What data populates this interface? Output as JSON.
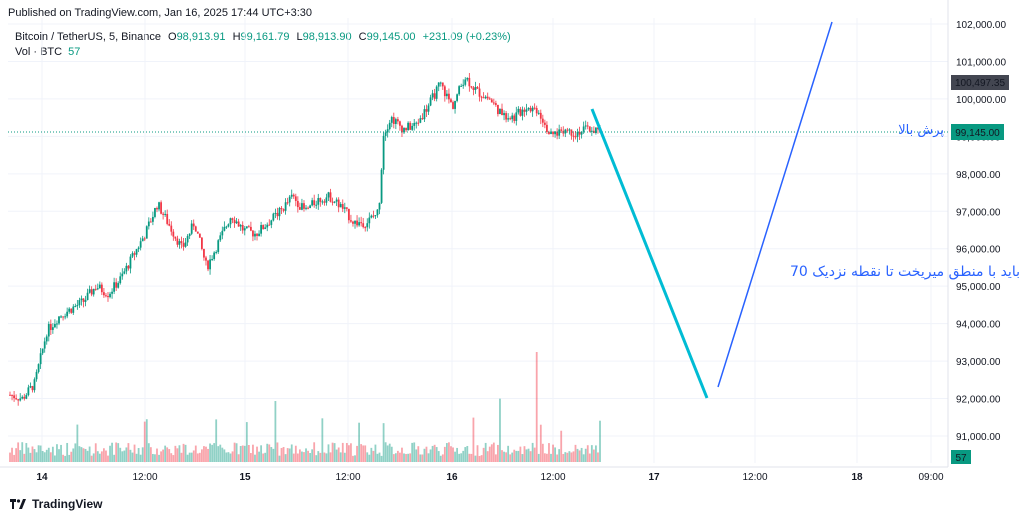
{
  "header": {
    "published": "Published on TradingView.com, Jan 16, 2025 17:44 UTC+3:30"
  },
  "legend": {
    "symbol": "Bitcoin / TetherUS, 5, Binance",
    "open_label": "O",
    "open": "98,913.91",
    "high_label": "H",
    "high": "99,161.79",
    "low_label": "L",
    "low": "98,913.90",
    "close_label": "C",
    "close": "99,145.00",
    "change": "+231.09 (+0.23%)",
    "vol_label": "Vol · BTC",
    "vol_value": "57"
  },
  "colors": {
    "up": "#089981",
    "down": "#f23645",
    "cyan_line": "#00bcd4",
    "blue_line": "#2962ff",
    "price_tag": "#089981",
    "dark_tag": "#434651"
  },
  "tags": {
    "dark_price": "100,497.35",
    "current_price": "99,145.00",
    "vol_tag": "57"
  },
  "annotations": {
    "upper_text": "پرش بالا",
    "lower_text": "باید با منطق میریخت تا نقطه نزدیک 70"
  },
  "footer": {
    "brand": "TradingView",
    "logo_icon": "tradingview-logo-icon"
  },
  "chart_data": {
    "type": "candlestick",
    "y_ticks": [
      "102,000.00",
      "101,000.00",
      "100,000.00",
      "99,000.00",
      "98,000.00",
      "97,000.00",
      "96,000.00",
      "95,000.00",
      "94,000.00",
      "93,000.00",
      "92,000.00",
      "91,000.00"
    ],
    "x_ticks": [
      "14",
      "12:00",
      "15",
      "12:00",
      "16",
      "12:00",
      "17",
      "12:00",
      "18",
      "09:00"
    ],
    "ylim": [
      90500,
      102200
    ],
    "price_path": [
      [
        0,
        92100
      ],
      [
        0.5,
        92000
      ],
      [
        1,
        92400
      ],
      [
        1.5,
        93800
      ],
      [
        2,
        94200
      ],
      [
        3,
        94600
      ],
      [
        3.5,
        95000
      ],
      [
        4,
        94800
      ],
      [
        4.5,
        95200
      ],
      [
        5,
        95800
      ],
      [
        5.5,
        96400
      ],
      [
        6,
        97200
      ],
      [
        6.5,
        96600
      ],
      [
        7,
        96000
      ],
      [
        7.5,
        96700
      ],
      [
        8,
        95500
      ],
      [
        8.5,
        96200
      ],
      [
        9,
        96900
      ],
      [
        9.5,
        96500
      ],
      [
        10,
        96400
      ],
      [
        10.5,
        96700
      ],
      [
        11,
        97000
      ],
      [
        11.5,
        97400
      ],
      [
        12,
        97000
      ],
      [
        12.5,
        97300
      ],
      [
        13,
        97400
      ],
      [
        13.5,
        97100
      ],
      [
        14,
        96700
      ],
      [
        14.5,
        96700
      ],
      [
        15,
        97000
      ],
      [
        15.2,
        99100
      ],
      [
        15.5,
        99500
      ],
      [
        16,
        99200
      ],
      [
        16.5,
        99300
      ],
      [
        17,
        99800
      ],
      [
        17.5,
        100400
      ],
      [
        18,
        99800
      ],
      [
        18.5,
        100600
      ],
      [
        19,
        100200
      ],
      [
        19.5,
        100000
      ],
      [
        20,
        99600
      ],
      [
        20.5,
        99500
      ],
      [
        21,
        99800
      ],
      [
        21.5,
        99700
      ],
      [
        22,
        99000
      ],
      [
        22.5,
        99200
      ],
      [
        23,
        99100
      ],
      [
        23.5,
        99200
      ],
      [
        24,
        99145
      ]
    ],
    "drawn_lines": [
      {
        "color": "cyan",
        "from": [
          "Jan 16 ~16:00",
          99750
        ],
        "to": [
          "Jan 17 ~06:00",
          92000
        ]
      },
      {
        "color": "blue",
        "from": [
          "Jan 17 ~08:00",
          92300
        ],
        "to": [
          "Jan 17 ~23:00",
          102300
        ]
      }
    ],
    "current_price": 99145.0,
    "marked_price": 100497.35
  }
}
